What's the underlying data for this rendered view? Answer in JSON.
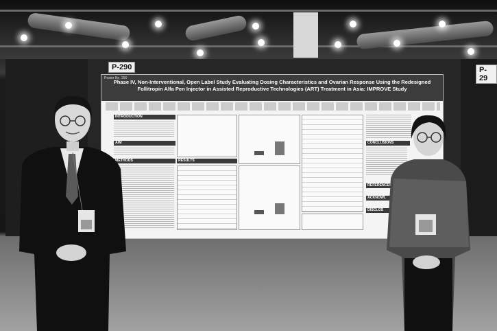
{
  "booths": {
    "left_label": "P-290",
    "right_label": "P-29"
  },
  "poster": {
    "id_text": "Poster No. 290",
    "title": "Phase IV, Non-Interventional, Open Label Study Evaluating Dosing Characteristics and Ovarian Response Using the Redesigned Follitropin Alfa Pen Injector in Assisted Reproductive Technologies (ART) Treatment in Asia: IMPROVE Study",
    "sections": {
      "introduction": "INTRODUCTION",
      "aim": "AIM",
      "methods": "METHODS",
      "results": "RESULTS",
      "conclusions": "CONCLUSIONS",
      "references": "REFERENCES",
      "acknowledgements": "ACKNOWL",
      "disclosures": "DISCLOS"
    }
  }
}
